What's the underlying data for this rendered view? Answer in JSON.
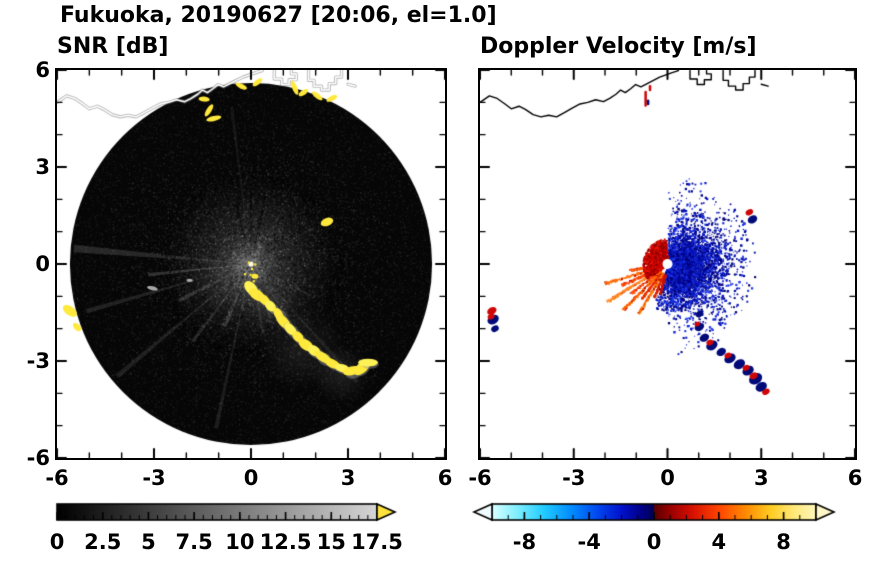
{
  "title": "Fukuoka, 20190627 [20:06, el=1.0]",
  "panel_titles": {
    "snr": "SNR [dB]",
    "doppler": "Doppler Velocity [m/s]"
  },
  "axis": {
    "range": [
      -6,
      6
    ],
    "minor_step": 1,
    "x_ticks": [
      -6,
      -3,
      0,
      3,
      6
    ],
    "x_tick_labels": [
      "-6",
      "-3",
      "0",
      "3",
      "6"
    ],
    "y_ticks": [
      6,
      3,
      0,
      -3,
      -6
    ],
    "y_tick_labels": [
      "6",
      "3",
      "0",
      "-3",
      "-6"
    ]
  },
  "coastline": {
    "main": [
      [
        -6.0,
        5.0
      ],
      [
        -5.7,
        5.2
      ],
      [
        -5.45,
        5.12
      ],
      [
        -5.2,
        4.95
      ],
      [
        -5.0,
        4.8
      ],
      [
        -4.75,
        4.88
      ],
      [
        -4.55,
        4.78
      ],
      [
        -4.3,
        4.62
      ],
      [
        -4.05,
        4.55
      ],
      [
        -3.8,
        4.6
      ],
      [
        -3.55,
        4.55
      ],
      [
        -3.3,
        4.68
      ],
      [
        -3.05,
        4.82
      ],
      [
        -2.8,
        4.95
      ],
      [
        -2.55,
        5.0
      ],
      [
        -2.3,
        5.08
      ],
      [
        -2.05,
        5.02
      ],
      [
        -1.85,
        5.12
      ],
      [
        -1.65,
        5.25
      ],
      [
        -1.5,
        5.38
      ],
      [
        -1.35,
        5.3
      ],
      [
        -1.18,
        5.42
      ],
      [
        -1.02,
        5.55
      ],
      [
        -0.85,
        5.48
      ],
      [
        -0.65,
        5.58
      ],
      [
        -0.45,
        5.68
      ],
      [
        -0.25,
        5.78
      ],
      [
        -0.05,
        5.85
      ],
      [
        0.15,
        5.92
      ],
      [
        0.35,
        5.98
      ]
    ],
    "structures": [
      [
        [
          0.72,
          5.98
        ],
        [
          0.72,
          5.72
        ],
        [
          0.95,
          5.72
        ],
        [
          0.95,
          5.55
        ],
        [
          1.18,
          5.55
        ],
        [
          1.18,
          5.7
        ],
        [
          1.4,
          5.7
        ],
        [
          1.4,
          5.88
        ],
        [
          1.25,
          5.88
        ],
        [
          1.25,
          5.98
        ]
      ],
      [
        [
          1.78,
          5.98
        ],
        [
          1.78,
          5.68
        ],
        [
          1.95,
          5.68
        ],
        [
          1.95,
          5.5
        ],
        [
          2.18,
          5.5
        ],
        [
          2.18,
          5.38
        ],
        [
          2.42,
          5.38
        ],
        [
          2.42,
          5.58
        ],
        [
          2.62,
          5.58
        ],
        [
          2.62,
          5.78
        ],
        [
          2.8,
          5.78
        ],
        [
          2.8,
          5.98
        ]
      ],
      [
        [
          3.0,
          5.56
        ],
        [
          3.22,
          5.5
        ]
      ]
    ]
  },
  "chart_data": [
    {
      "type": "heatmap",
      "name": "snr_ppi",
      "title": "SNR [dB]",
      "units": "dB",
      "xlim": [
        -6,
        6
      ],
      "ylim": [
        -6,
        6
      ],
      "xticks": [
        -6,
        -3,
        0,
        3,
        6
      ],
      "yticks": [
        -6,
        -3,
        0,
        3,
        6
      ],
      "colorbar": {
        "range": [
          0,
          17.5
        ],
        "tick_values": [
          0,
          2.5,
          5,
          7.5,
          10,
          12.5,
          15,
          17.5
        ],
        "tick_labels": [
          "0",
          "2.5",
          "5",
          "7.5",
          "10",
          "12.5",
          "15",
          "17.5"
        ],
        "minor_step": 0.5,
        "colormap": "grayscale",
        "start_color": "#000000",
        "end_color": "#d6d6d6",
        "over_color": "#ffe23e"
      },
      "scan_disk": {
        "center": [
          0,
          0
        ],
        "radius": 5.6,
        "background": "#060606"
      },
      "spokes": [
        {
          "az": 175,
          "len": 5.5,
          "w": 2.5,
          "a": 0.2
        },
        {
          "az": 186,
          "len": 3.2,
          "w": 2,
          "a": 0.26
        },
        {
          "az": 196,
          "len": 5.3,
          "w": 1.6,
          "a": 0.16
        },
        {
          "az": 207,
          "len": 2.5,
          "w": 3,
          "a": 0.24
        },
        {
          "az": 220,
          "len": 5.4,
          "w": 1.6,
          "a": 0.15
        },
        {
          "az": 233,
          "len": 3.0,
          "w": 2,
          "a": 0.2
        },
        {
          "az": 247,
          "len": 2.1,
          "w": 3.5,
          "a": 0.26
        },
        {
          "az": 258,
          "len": 5.2,
          "w": 1.4,
          "a": 0.13
        },
        {
          "az": 290,
          "len": 1.8,
          "w": 2.5,
          "a": 0.16
        },
        {
          "az": 312,
          "len": 4.9,
          "w": 1.4,
          "a": 0.11
        },
        {
          "az": 332,
          "len": 2.1,
          "w": 2,
          "a": 0.13
        },
        {
          "az": 97,
          "len": 4.9,
          "w": 1.2,
          "a": 0.09
        },
        {
          "az": 60,
          "len": 2.0,
          "w": 1.5,
          "a": 0.09
        },
        {
          "az": 30,
          "len": 2.3,
          "w": 1.5,
          "a": 0.09
        },
        {
          "az": -55,
          "len": 3.0,
          "w": 2,
          "a": 0.11
        },
        {
          "az": -80,
          "len": 2.2,
          "w": 2.5,
          "a": 0.12
        }
      ],
      "dark_spokes": [
        {
          "az": 78,
          "len": 2.2,
          "w": 2
        },
        {
          "az": 90,
          "len": 2.5,
          "w": 1.6
        },
        {
          "az": 104,
          "len": 1.9,
          "w": 2
        },
        {
          "az": 35,
          "len": 2.0,
          "w": 1.6
        }
      ],
      "haze": [
        {
          "x": 1.6,
          "y": -2.6,
          "r": 1.3,
          "a": 0.16
        },
        {
          "x": 0.6,
          "y": -1.2,
          "r": 0.9,
          "a": 0.16
        },
        {
          "x": 2.8,
          "y": -3.4,
          "r": 0.9,
          "a": 0.18
        },
        {
          "x": -0.6,
          "y": -0.5,
          "r": 1.0,
          "a": 0.12
        }
      ],
      "clutter_arc": [
        [
          0.0,
          -0.75
        ],
        [
          0.18,
          -0.95
        ],
        [
          0.4,
          -1.1
        ],
        [
          0.6,
          -1.3
        ],
        [
          0.85,
          -1.55
        ],
        [
          1.0,
          -1.78
        ],
        [
          1.22,
          -2.02
        ],
        [
          1.45,
          -2.25
        ],
        [
          1.7,
          -2.5
        ],
        [
          1.95,
          -2.68
        ],
        [
          2.22,
          -2.88
        ],
        [
          2.52,
          -3.08
        ],
        [
          2.82,
          -3.22
        ],
        [
          3.12,
          -3.3
        ],
        [
          3.42,
          -3.22
        ],
        [
          3.62,
          -3.05
        ]
      ],
      "coastal_echoes": [
        [
          -1.45,
          5.1
        ],
        [
          -1.3,
          4.75
        ],
        [
          -1.15,
          4.5
        ],
        [
          1.35,
          5.45
        ],
        [
          1.62,
          5.3
        ],
        [
          2.05,
          5.2
        ],
        [
          2.5,
          5.12
        ],
        [
          0.2,
          5.62
        ],
        [
          -0.3,
          5.5
        ]
      ],
      "isolated_echoes": [
        {
          "x": -5.6,
          "y": -1.45,
          "w": 9,
          "h": 16,
          "rot": -55
        },
        {
          "x": -5.38,
          "y": -1.95,
          "w": 6,
          "h": 10,
          "rot": -45
        },
        {
          "x": 2.35,
          "y": 1.3,
          "w": 13,
          "h": 8,
          "rot": -20
        },
        {
          "x": 0.12,
          "y": -0.38,
          "w": 7,
          "h": 5,
          "rot": 10
        }
      ],
      "gray_echoes": [
        {
          "x": -3.05,
          "y": -0.75,
          "w": 11,
          "h": 4,
          "rot": 12
        },
        {
          "x": -1.9,
          "y": -0.5,
          "w": 6,
          "h": 3,
          "rot": 0
        }
      ],
      "center_specks": [
        [
          0.0,
          -0.12
        ],
        [
          -0.1,
          0.08
        ],
        [
          0.1,
          0.02
        ],
        [
          -0.22,
          -0.28
        ],
        [
          0.05,
          -0.5
        ],
        [
          -0.05,
          -0.3
        ]
      ]
    },
    {
      "type": "scatter",
      "name": "doppler_ppi",
      "title": "Doppler Velocity [m/s]",
      "units": "m/s",
      "xlim": [
        -6,
        6
      ],
      "ylim": [
        -6,
        6
      ],
      "xticks": [
        -6,
        -3,
        0,
        3,
        6
      ],
      "yticks": [
        -6,
        -3,
        0,
        3,
        6
      ],
      "colorbar": {
        "range": [
          -10,
          10
        ],
        "tick_values": [
          -8,
          -4,
          0,
          4,
          8
        ],
        "tick_labels": [
          "-8",
          "-4",
          "0",
          "4",
          "8"
        ],
        "minor_step": 1,
        "colormap": "cyan-blue-navy / darkred-red-orange-yellow",
        "under_color": "#eefcff",
        "over_color": "#fff7c8",
        "stops": [
          [
            0,
            "#d8ffff"
          ],
          [
            0.08,
            "#7deeff"
          ],
          [
            0.16,
            "#22ccff"
          ],
          [
            0.25,
            "#0088ff"
          ],
          [
            0.33,
            "#0044ee"
          ],
          [
            0.4,
            "#0011cc"
          ],
          [
            0.46,
            "#000088"
          ],
          [
            0.5,
            "#000055"
          ],
          [
            0.501,
            "#5a0000"
          ],
          [
            0.55,
            "#990000"
          ],
          [
            0.62,
            "#d81100"
          ],
          [
            0.7,
            "#ff4400"
          ],
          [
            0.78,
            "#ff8800"
          ],
          [
            0.86,
            "#ffcc22"
          ],
          [
            0.93,
            "#ffe877"
          ],
          [
            1,
            "#fff6bb"
          ]
        ]
      },
      "negative_cluster": {
        "count": 5200,
        "az_sigma": 46,
        "az_half": 92,
        "r_min": 0.1,
        "r_scale": 0.92,
        "r_max": 2.85,
        "colors": [
          "#00008b",
          "#000070",
          "#0a18c8",
          "#2038e8",
          "#000f9e",
          "#1326d8"
        ]
      },
      "negative_sparse": {
        "count": 170,
        "az_half": 82,
        "r_range": [
          1.3,
          2.75
        ]
      },
      "south_wrap": {
        "count": 520,
        "az_range": [
          -110,
          -48
        ],
        "r_range": [
          0.15,
          1.45
        ]
      },
      "positive_rays": [
        {
          "az": 188,
          "r0": 0.3,
          "r1": 1.25,
          "w": 3,
          "c": "#ff5500"
        },
        {
          "az": 196,
          "r0": 0.3,
          "r1": 2.1,
          "w": 2.2,
          "c": "#ff7711"
        },
        {
          "az": 203,
          "r0": 0.35,
          "r1": 1.6,
          "w": 2.4,
          "c": "#ff4400"
        },
        {
          "az": 210,
          "r0": 0.3,
          "r1": 2.25,
          "w": 2.0,
          "c": "#ff8822"
        },
        {
          "az": 217,
          "r0": 0.35,
          "r1": 1.5,
          "w": 2.2,
          "c": "#ff5511"
        },
        {
          "az": 224,
          "r0": 0.3,
          "r1": 2.0,
          "w": 1.8,
          "c": "#ff6600"
        },
        {
          "az": 231,
          "r0": 0.35,
          "r1": 1.35,
          "w": 2.0,
          "c": "#ee3300"
        },
        {
          "az": 238,
          "r0": 0.3,
          "r1": 1.8,
          "w": 1.8,
          "c": "#ff7700"
        },
        {
          "az": 246,
          "r0": 0.35,
          "r1": 1.1,
          "w": 2.2,
          "c": "#dd2200"
        },
        {
          "az": 254,
          "r0": 0.3,
          "r1": 0.95,
          "w": 2.4,
          "c": "#cc1100"
        }
      ],
      "positive_patch": {
        "count": 1150,
        "az_range": [
          95,
          212
        ],
        "r_range": [
          0.13,
          0.8
        ],
        "colors": [
          "#cc0000",
          "#aa0000",
          "#e81100",
          "#8a0000"
        ]
      },
      "center_hole_radius": 0.14,
      "se_clutter_arc": [
        {
          "x": 1.02,
          "y": -1.55,
          "r": 4,
          "c": "navy"
        },
        {
          "x": 1.02,
          "y": -1.95,
          "r": 5,
          "c": "mix"
        },
        {
          "x": 1.18,
          "y": -2.28,
          "r": 5,
          "c": "navy"
        },
        {
          "x": 1.42,
          "y": -2.52,
          "r": 6,
          "c": "mix"
        },
        {
          "x": 1.72,
          "y": -2.72,
          "r": 5,
          "c": "navy"
        },
        {
          "x": 2.0,
          "y": -2.92,
          "r": 6,
          "c": "mix"
        },
        {
          "x": 2.3,
          "y": -3.1,
          "r": 6,
          "c": "navy"
        },
        {
          "x": 2.58,
          "y": -3.3,
          "r": 6,
          "c": "mix"
        },
        {
          "x": 2.82,
          "y": -3.55,
          "r": 7,
          "c": "mix"
        },
        {
          "x": 3.0,
          "y": -3.8,
          "r": 6,
          "c": "navy"
        },
        {
          "x": 3.15,
          "y": -3.95,
          "r": 4,
          "c": "red"
        }
      ],
      "west_edge_clutter": [
        {
          "x": -5.62,
          "y": -1.45,
          "r": 5,
          "c": "red"
        },
        {
          "x": -5.58,
          "y": -1.72,
          "r": 6,
          "c": "mix"
        },
        {
          "x": -5.52,
          "y": -2.0,
          "r": 4,
          "c": "navy"
        }
      ],
      "ne_clutter_pair": [
        {
          "x": 2.62,
          "y": 1.6,
          "r": 4,
          "c": "red"
        },
        {
          "x": 2.72,
          "y": 1.38,
          "r": 5,
          "c": "navy"
        }
      ],
      "coast_clutter": [
        {
          "x": -0.7,
          "y1": 5.32,
          "y2": 4.9,
          "c": "#cf0606"
        },
        {
          "x": -0.62,
          "y1": 5.05,
          "y2": 4.95,
          "c": "#00087a"
        },
        {
          "x": -0.56,
          "y1": 5.5,
          "y2": 5.38,
          "c": "#cf0606"
        }
      ]
    }
  ]
}
